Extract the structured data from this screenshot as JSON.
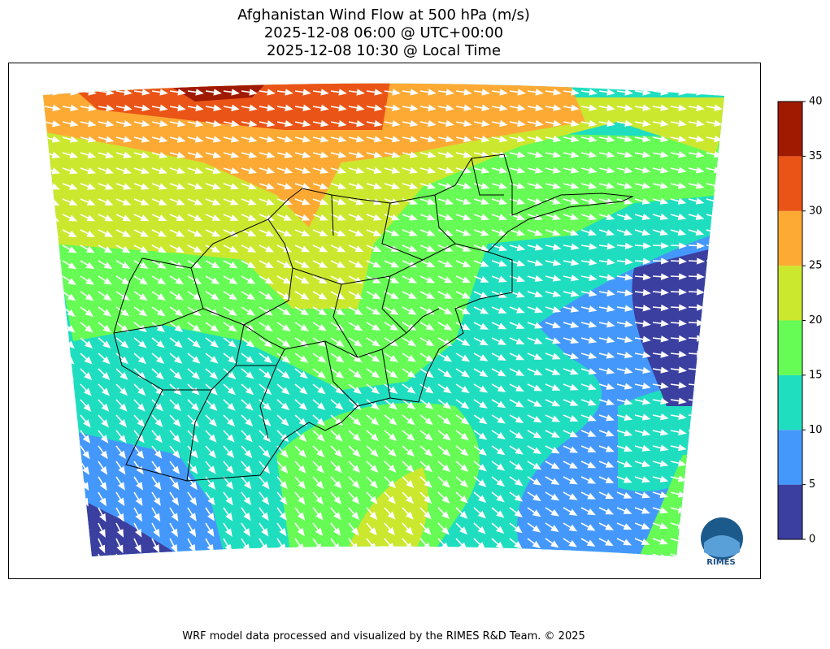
{
  "title": [
    "Afghanistan Wind Flow at 500 hPa (m/s)",
    "2025-12-08 06:00 @ UTC+00:00",
    "2025-12-08 10:30 @ Local Time"
  ],
  "colorbar": {
    "ticks": [
      0,
      5,
      10,
      15,
      20,
      25,
      30,
      35,
      40
    ],
    "colors": [
      "#3b3f9f",
      "#4598fb",
      "#1fdec0",
      "#66fb55",
      "#cbe82f",
      "#fdaa35",
      "#ea5416",
      "#a01a02"
    ]
  },
  "logo": "RIMES",
  "footer": "WRF model data processed and visualized by the RIMES R&D Team. © 2025"
}
